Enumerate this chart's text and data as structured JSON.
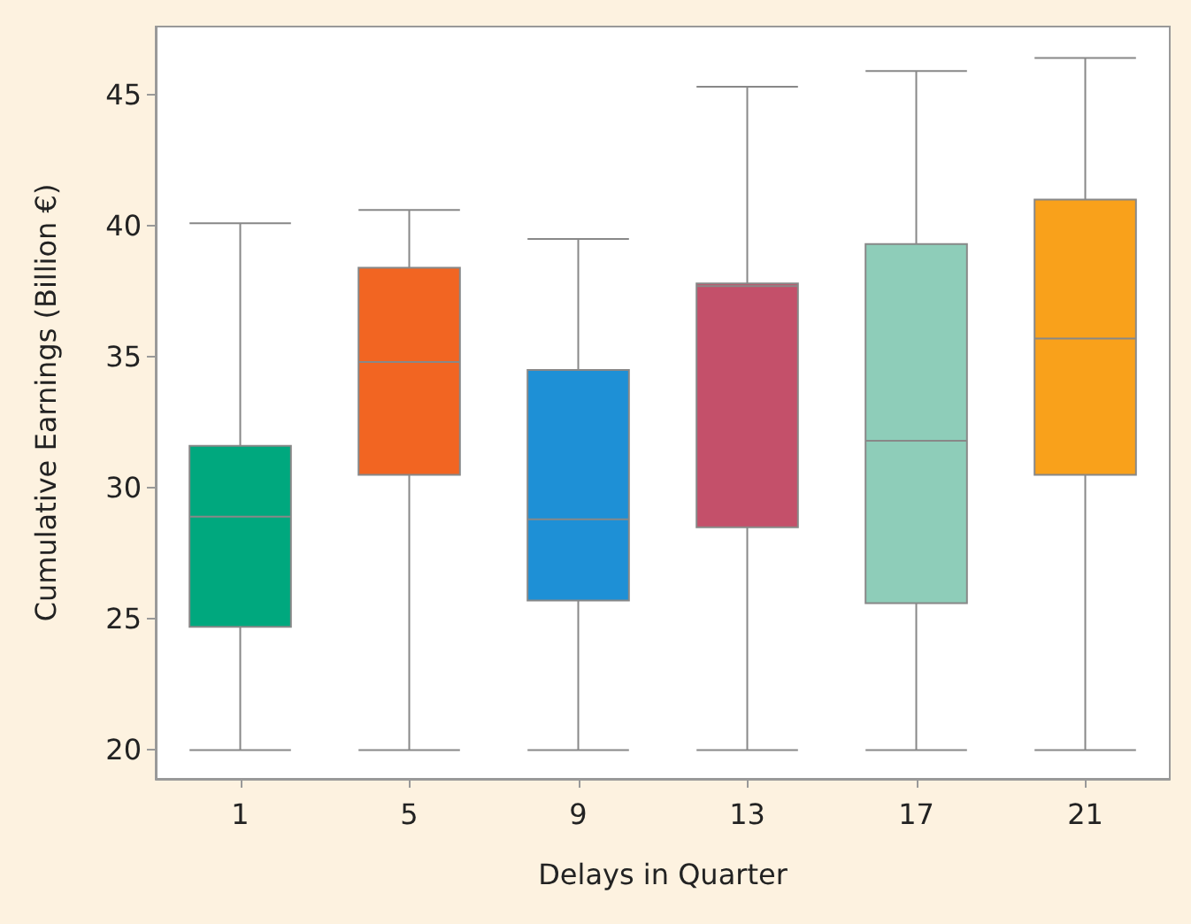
{
  "chart_data": {
    "type": "box",
    "xlabel": "Delays in Quarter",
    "ylabel": "Cumulative Earnings (Billion €)",
    "categories": [
      "1",
      "5",
      "9",
      "13",
      "17",
      "21"
    ],
    "colors": [
      "#00a87e",
      "#f26522",
      "#1e90d6",
      "#c4506a",
      "#8ecdb9",
      "#f9a11b"
    ],
    "boxes": [
      {
        "low": 20,
        "q1": 24.7,
        "median": 28.9,
        "q3": 31.6,
        "high": 40.1
      },
      {
        "low": 20,
        "q1": 30.5,
        "median": 34.8,
        "q3": 38.4,
        "high": 40.6
      },
      {
        "low": 20,
        "q1": 25.7,
        "median": 28.8,
        "q3": 34.5,
        "high": 39.5
      },
      {
        "low": 20,
        "q1": 28.5,
        "median": 37.7,
        "q3": 37.8,
        "high": 45.3
      },
      {
        "low": 20,
        "q1": 25.6,
        "median": 31.8,
        "q3": 39.3,
        "high": 45.9
      },
      {
        "low": 20,
        "q1": 30.5,
        "median": 35.7,
        "q3": 41.0,
        "high": 46.4
      }
    ],
    "ylim": [
      18.9,
      47.6
    ],
    "yticks": [
      20,
      25,
      30,
      35,
      40,
      45
    ]
  }
}
